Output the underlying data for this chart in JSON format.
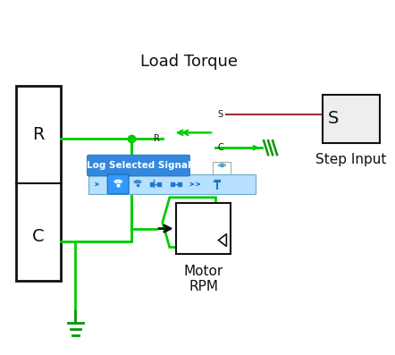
{
  "bg_color": "#ffffff",
  "load_torque_label": "Load Torque",
  "motor_rpm_label": "Motor\nRPM",
  "step_input_label": "Step Input",
  "r_label": "R",
  "c_label": "C",
  "s_block_label": "S",
  "log_signal_label": "Log Selected Signal",
  "green": "#00cc00",
  "dark_green": "#009900",
  "dark_red": "#993333",
  "blue_icon": "#2277cc",
  "blue_sel": "#3399ff",
  "blue_bar": "#b8e0ff",
  "blue_tooltip": "#3388dd",
  "black": "#111111",
  "white": "#ffffff",
  "light_gray": "#eeeeee",
  "mid_gray": "#cccccc"
}
